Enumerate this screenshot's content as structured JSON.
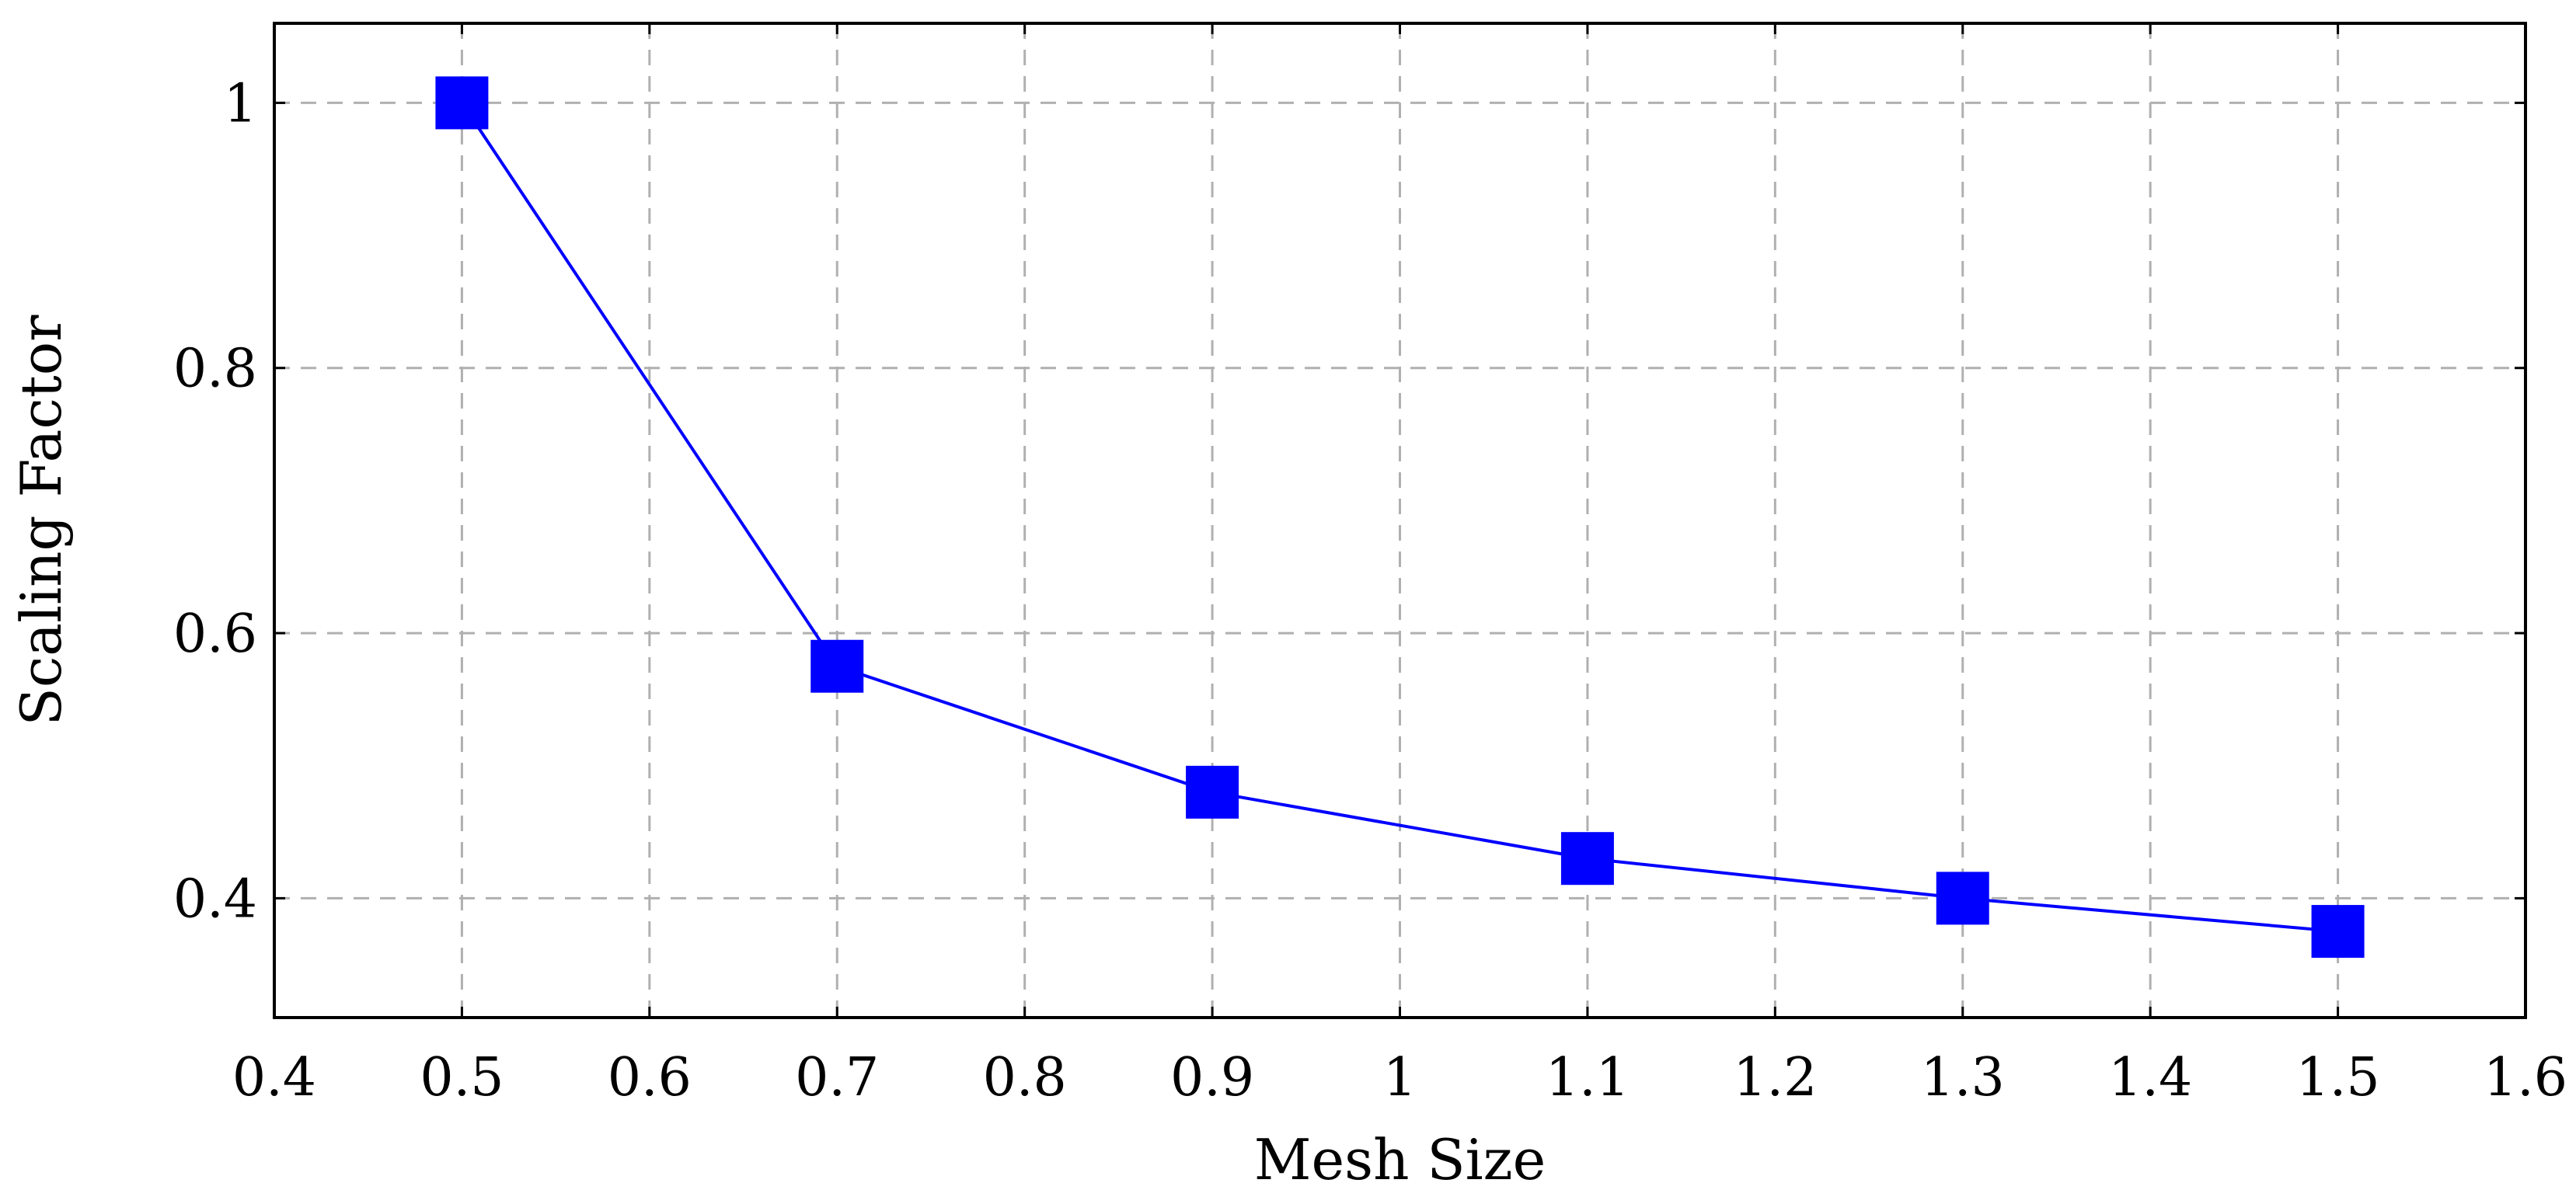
{
  "chart_data": {
    "type": "line",
    "title": "",
    "xlabel": "Mesh Size",
    "ylabel": "Scaling Factor",
    "xlim": [
      0.4,
      1.6
    ],
    "ylim": [
      0.31,
      1.06
    ],
    "x_ticks": [
      0.4,
      0.5,
      0.6,
      0.7,
      0.8,
      0.9,
      1.0,
      1.1,
      1.2,
      1.3,
      1.4,
      1.5,
      1.6
    ],
    "x_tick_labels": [
      "0.4",
      "0.5",
      "0.6",
      "0.7",
      "0.8",
      "0.9",
      "1",
      "1.1",
      "1.2",
      "1.3",
      "1.4",
      "1.5",
      "1.6"
    ],
    "y_ticks": [
      0.4,
      0.6,
      0.8,
      1.0
    ],
    "y_tick_labels": [
      "0.4",
      "0.6",
      "0.8",
      "1"
    ],
    "grid": true,
    "grid_style": "dashed",
    "legend": "none",
    "marker": "square",
    "series": [
      {
        "color": "#0000ff",
        "x": [
          0.5,
          0.7,
          0.9,
          1.1,
          1.3,
          1.5
        ],
        "y": [
          1.0,
          0.575,
          0.48,
          0.43,
          0.4,
          0.375
        ]
      }
    ]
  }
}
